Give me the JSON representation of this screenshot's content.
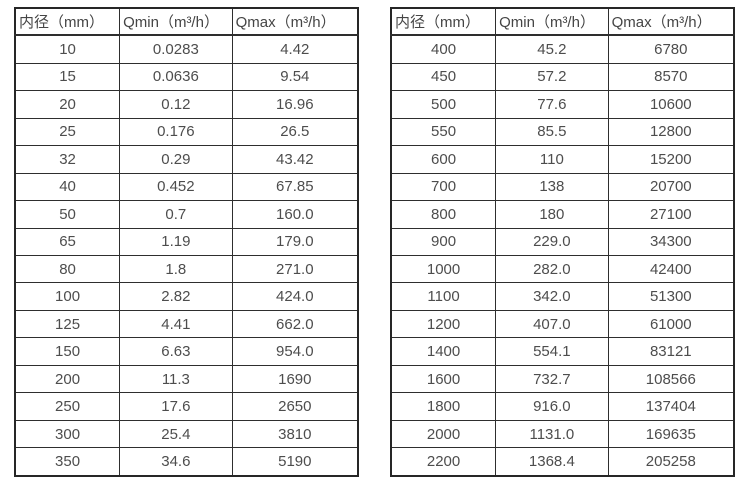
{
  "table_left": {
    "headers": [
      "内径（mm）",
      "Qmin（m³/h）",
      "Qmax（m³/h）"
    ],
    "rows": [
      [
        "10",
        "0.0283",
        "4.42"
      ],
      [
        "15",
        "0.0636",
        "9.54"
      ],
      [
        "20",
        "0.12",
        "16.96"
      ],
      [
        "25",
        "0.176",
        "26.5"
      ],
      [
        "32",
        "0.29",
        "43.42"
      ],
      [
        "40",
        "0.452",
        "67.85"
      ],
      [
        "50",
        "0.7",
        "160.0"
      ],
      [
        "65",
        "1.19",
        "179.0"
      ],
      [
        "80",
        "1.8",
        "271.0"
      ],
      [
        "100",
        "2.82",
        "424.0"
      ],
      [
        "125",
        "4.41",
        "662.0"
      ],
      [
        "150",
        "6.63",
        "954.0"
      ],
      [
        "200",
        "11.3",
        "1690"
      ],
      [
        "250",
        "17.6",
        "2650"
      ],
      [
        "300",
        "25.4",
        "3810"
      ],
      [
        "350",
        "34.6",
        "5190"
      ]
    ]
  },
  "table_right": {
    "headers": [
      "内径（mm）",
      "Qmin（m³/h）",
      "Qmax（m³/h）"
    ],
    "rows": [
      [
        "400",
        "45.2",
        "6780"
      ],
      [
        "450",
        "57.2",
        "8570"
      ],
      [
        "500",
        "77.6",
        "10600"
      ],
      [
        "550",
        "85.5",
        "12800"
      ],
      [
        "600",
        "110",
        "15200"
      ],
      [
        "700",
        "138",
        "20700"
      ],
      [
        "800",
        "180",
        "27100"
      ],
      [
        "900",
        "229.0",
        "34300"
      ],
      [
        "1000",
        "282.0",
        "42400"
      ],
      [
        "1100",
        "342.0",
        "51300"
      ],
      [
        "1200",
        "407.0",
        "61000"
      ],
      [
        "1400",
        "554.1",
        "83121"
      ],
      [
        "1600",
        "732.7",
        "108566"
      ],
      [
        "1800",
        "916.0",
        "137404"
      ],
      [
        "2000",
        "1131.0",
        "169635"
      ],
      [
        "2200",
        "1368.4",
        "205258"
      ]
    ]
  },
  "colors": {
    "background": "#ffffff",
    "border": "#2e2e2e",
    "text": "#4d4d4d"
  }
}
